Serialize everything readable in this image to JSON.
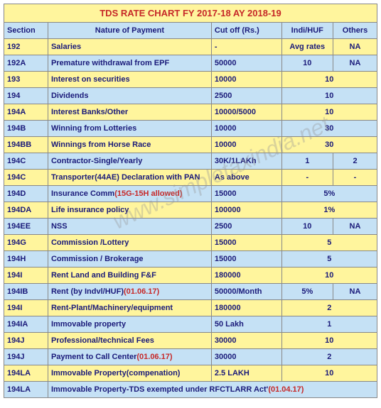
{
  "title": "TDS RATE CHART FY 2017-18 AY 2018-19",
  "watermark": "www.simpletaxindia.net",
  "headers": {
    "section": "Section",
    "nature": "Nature of Payment",
    "cutoff": "Cut off (Rs.)",
    "indi": "Indi/HUF",
    "others": "Others"
  },
  "rows": [
    {
      "cls": "yel",
      "sec": "192",
      "nat": "Salaries",
      "natRed": "",
      "cut": "-",
      "ind": "Avg rates",
      "oth": "NA",
      "merge": false
    },
    {
      "cls": "blu",
      "sec": "192A",
      "nat": "Premature withdrawal from EPF",
      "natRed": "",
      "cut": "50000",
      "ind": "10",
      "oth": "NA",
      "merge": false
    },
    {
      "cls": "yel",
      "sec": "193",
      "nat": "Interest on securities",
      "natRed": "",
      "cut": "10000",
      "ind": "",
      "oth": "10",
      "merge": true
    },
    {
      "cls": "blu",
      "sec": "194",
      "nat": "Dividends",
      "natRed": "",
      "cut": "2500",
      "ind": "",
      "oth": "10",
      "merge": true
    },
    {
      "cls": "yel",
      "sec": "194A",
      "nat": "Interest Banks/Other",
      "natRed": "",
      "cut": "10000/5000",
      "ind": "",
      "oth": "10",
      "merge": true
    },
    {
      "cls": "blu",
      "sec": "194B",
      "nat": "Winning from Lotteries",
      "natRed": "",
      "cut": "10000",
      "ind": "",
      "oth": "30",
      "merge": true
    },
    {
      "cls": "yel",
      "sec": "194BB",
      "nat": "Winnings from Horse Race",
      "natRed": "",
      "cut": "10000",
      "ind": "",
      "oth": "30",
      "merge": true
    },
    {
      "cls": "blu",
      "sec": "194C",
      "nat": "Contractor-Single/Yearly",
      "natRed": "",
      "cut": "30K/1LAKh",
      "ind": "1",
      "oth": "2",
      "merge": false
    },
    {
      "cls": "yel",
      "sec": "194C",
      "nat": "Transporter(44AE) Declaration with PAN",
      "natRed": "",
      "cut": "As above",
      "ind": "-",
      "oth": "-",
      "merge": false
    },
    {
      "cls": "blu",
      "sec": "194D",
      "nat": "Insurance Comm",
      "natRed": "(15G-15H allowed)",
      "cut": "15000",
      "ind": "",
      "oth": "5%",
      "merge": true
    },
    {
      "cls": "yel",
      "sec": "194DA",
      "nat": "Life insurance policy",
      "natRed": "",
      "cut": "100000",
      "ind": "",
      "oth": "1%",
      "merge": true
    },
    {
      "cls": "blu",
      "sec": "194EE",
      "nat": "NSS",
      "natRed": "",
      "cut": "2500",
      "ind": "10",
      "oth": "NA",
      "merge": false
    },
    {
      "cls": "yel",
      "sec": "194G",
      "nat": "Commission /Lottery",
      "natRed": "",
      "cut": "15000",
      "ind": "",
      "oth": "5",
      "merge": true
    },
    {
      "cls": "blu",
      "sec": "194H",
      "nat": "Commission / Brokerage",
      "natRed": "",
      "cut": "15000",
      "ind": "",
      "oth": "5",
      "merge": true
    },
    {
      "cls": "yel",
      "sec": "194I",
      "nat": "Rent Land and Building F&F",
      "natRed": "",
      "cut": "180000",
      "ind": "",
      "oth": "10",
      "merge": true
    },
    {
      "cls": "blu",
      "sec": "194IB",
      "nat": "Rent (by Indvl/HUF)",
      "natRed": "(01.06.17)",
      "cut": "50000/Month",
      "ind": "5%",
      "oth": "NA",
      "merge": false
    },
    {
      "cls": "yel",
      "sec": "194I",
      "nat": "Rent-Plant/Machinery/equipment",
      "natRed": "",
      "cut": "180000",
      "ind": "",
      "oth": "2",
      "merge": true
    },
    {
      "cls": "blu",
      "sec": "194IA",
      "nat": "Immovable property",
      "natRed": "",
      "cut": "50 Lakh",
      "ind": "",
      "oth": "1",
      "merge": true
    },
    {
      "cls": "yel",
      "sec": "194J",
      "nat": "Professional/technical Fees",
      "natRed": "",
      "cut": "30000",
      "ind": "",
      "oth": "10",
      "merge": true
    },
    {
      "cls": "blu",
      "sec": "194J",
      "nat": "Payment to Call Center",
      "natRed": "(01.06.17)",
      "cut": "30000",
      "ind": "",
      "oth": "2",
      "merge": true
    },
    {
      "cls": "yel",
      "sec": "194LA",
      "nat": "Immovable Property(compenation)",
      "natRed": "",
      "cut": "2.5 LAKH",
      "ind": "",
      "oth": "10",
      "merge": true
    }
  ],
  "lastRow": {
    "sec": "194LA",
    "text": "Immovable Property-TDS exempted under RFCTLARR Act'",
    "red": "(01.04.17)"
  }
}
